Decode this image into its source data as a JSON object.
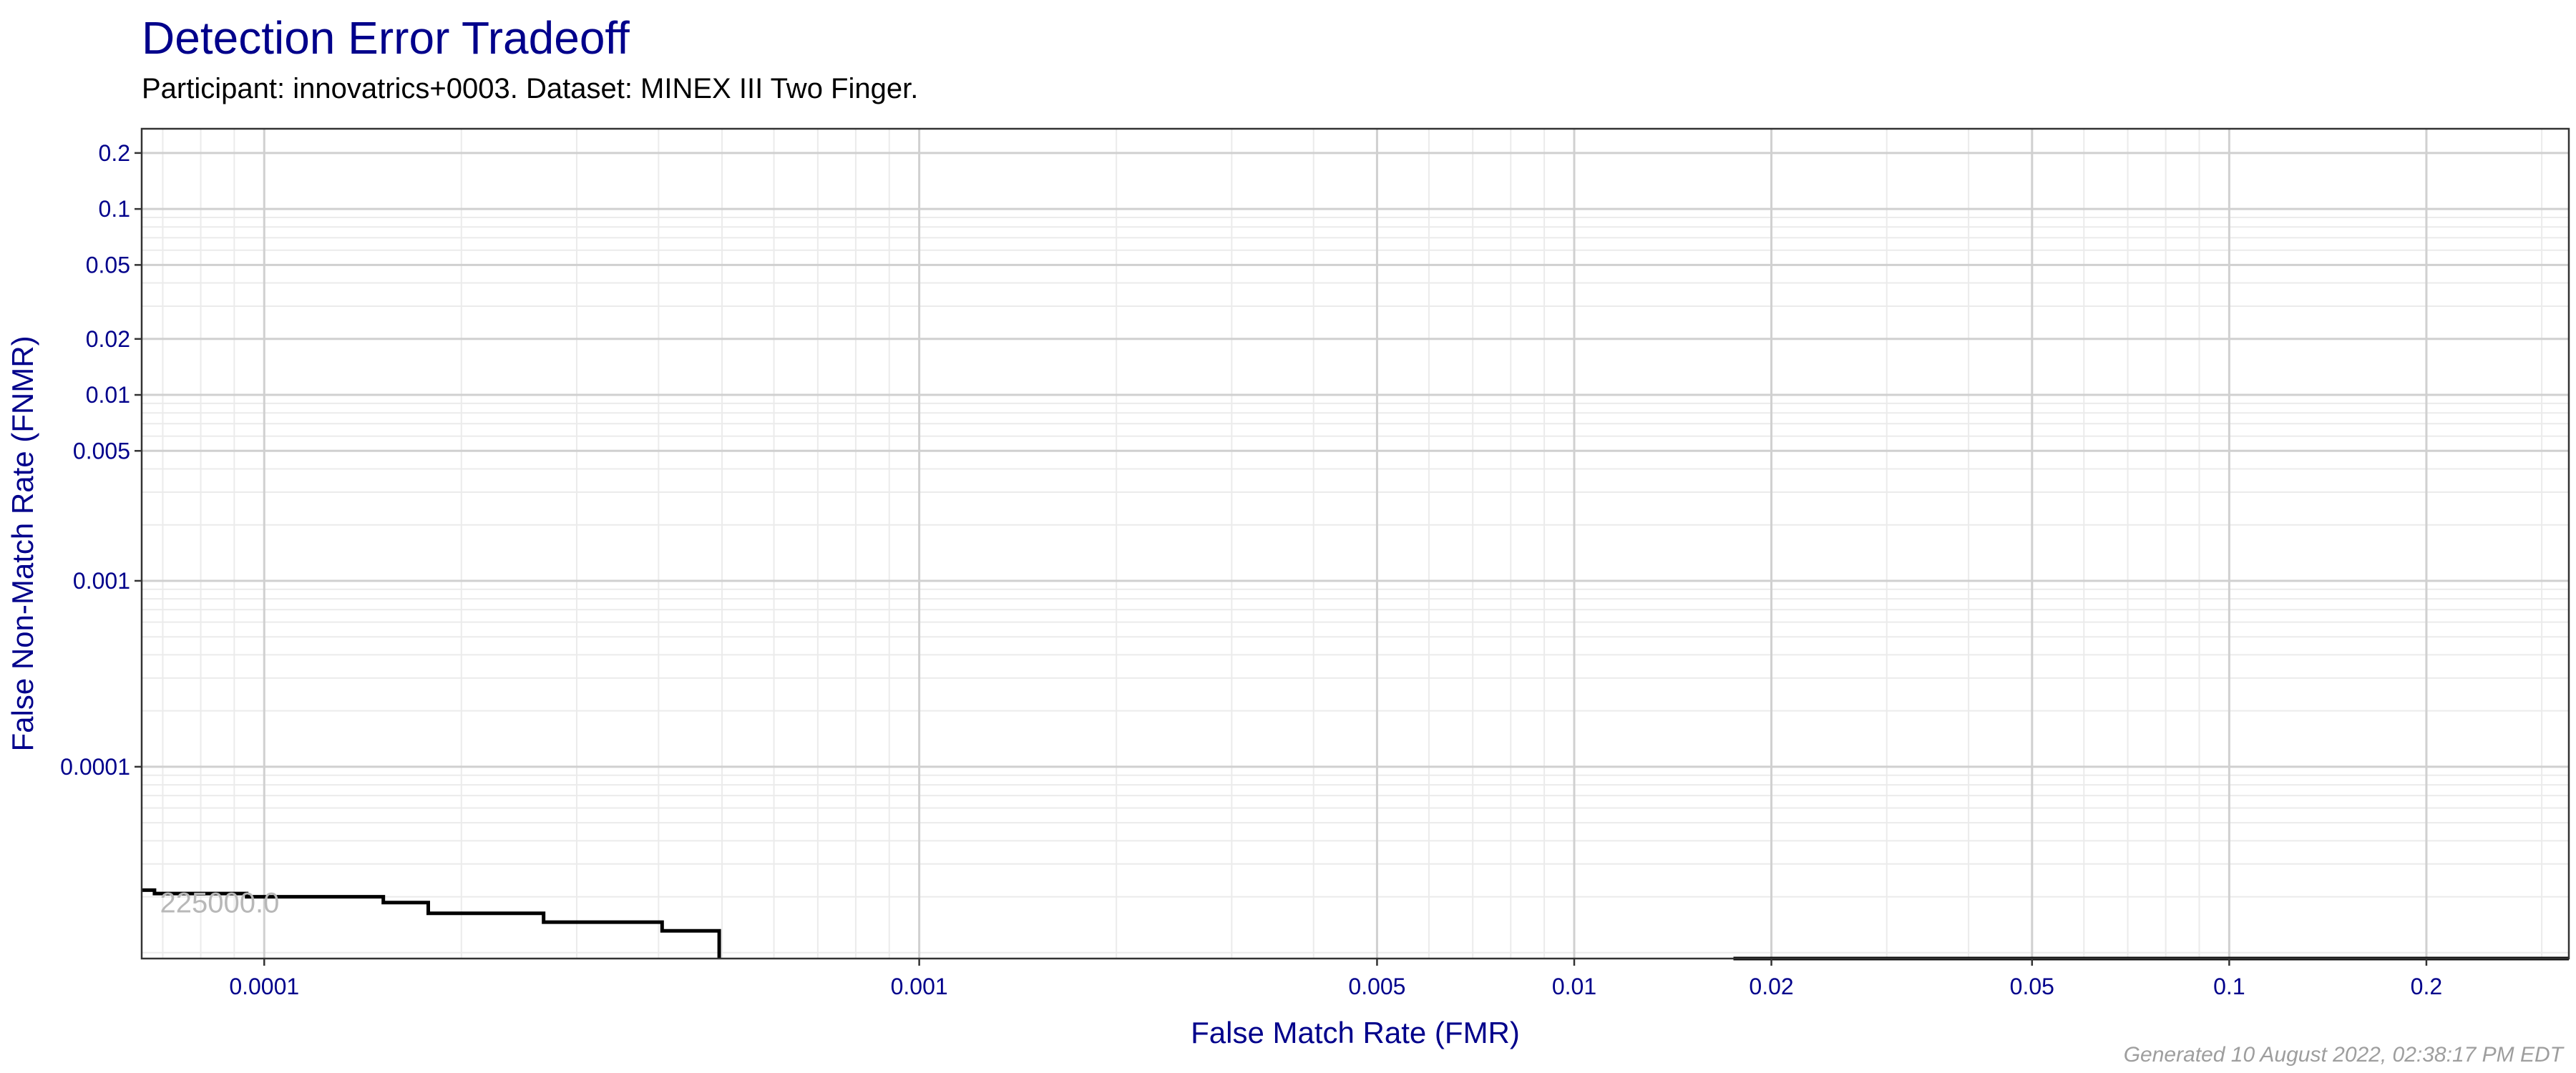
{
  "chart_data": {
    "type": "line",
    "title": "Detection Error Tradeoff",
    "subtitle": "Participant: innovatrics+0003. Dataset: MINEX III Two Finger.",
    "xlabel": "False Match Rate (FMR)",
    "ylabel": "False Non-Match Rate (FNMR)",
    "x_scale": "log",
    "y_scale": "log",
    "xlim": [
      6.5e-05,
      0.33
    ],
    "ylim": [
      9.3e-06,
      0.27
    ],
    "grid": true,
    "x_ticks": [
      {
        "value": 0.0001,
        "label": "0.0001"
      },
      {
        "value": 0.001,
        "label": "0.001"
      },
      {
        "value": 0.005,
        "label": "0.005"
      },
      {
        "value": 0.01,
        "label": "0.01"
      },
      {
        "value": 0.02,
        "label": "0.02"
      },
      {
        "value": 0.05,
        "label": "0.05"
      },
      {
        "value": 0.1,
        "label": "0.1"
      },
      {
        "value": 0.2,
        "label": "0.2"
      }
    ],
    "y_ticks": [
      {
        "value": 0.2,
        "label": "0.2"
      },
      {
        "value": 0.1,
        "label": "0.1"
      },
      {
        "value": 0.05,
        "label": "0.05"
      },
      {
        "value": 0.02,
        "label": "0.02"
      },
      {
        "value": 0.01,
        "label": "0.01"
      },
      {
        "value": 0.005,
        "label": "0.005"
      },
      {
        "value": 0.001,
        "label": "0.001"
      },
      {
        "value": 0.0001,
        "label": "0.0001"
      }
    ],
    "series": [
      {
        "color": "#000000",
        "x": [
          6.5e-05,
          6.8e-05,
          6.8e-05,
          9.4e-05,
          9.4e-05,
          0.000152,
          0.000152,
          0.000178,
          0.000178,
          0.000267,
          0.000267,
          0.000405,
          0.000405,
          0.000495,
          0.000495
        ],
        "y": [
          2.17e-05,
          2.17e-05,
          2.08e-05,
          2.08e-05,
          2e-05,
          2e-05,
          1.86e-05,
          1.86e-05,
          1.63e-05,
          1.63e-05,
          1.46e-05,
          1.46e-05,
          1.31e-05,
          1.31e-05,
          9.3e-06
        ]
      },
      {
        "color": "#000000",
        "x": [
          0.0175,
          0.33
        ],
        "y": [
          9.3e-06,
          9.3e-06
        ]
      }
    ],
    "annotations": [
      {
        "text": "225000.0",
        "x": 8.55e-05,
        "y": 1.81e-05
      }
    ]
  },
  "footer": "Generated 10 August 2022, 02:38:17 PM EDT"
}
